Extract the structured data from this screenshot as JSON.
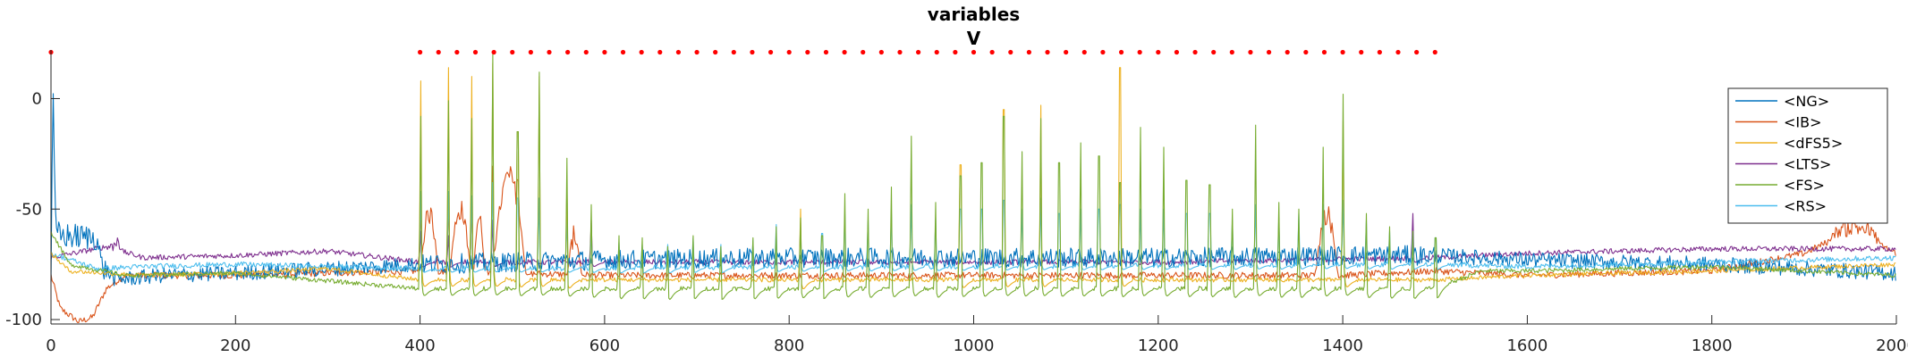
{
  "chart_data": {
    "type": "line",
    "title": [
      "variables",
      "V"
    ],
    "xlabel": "",
    "ylabel": "",
    "xlim": [
      0,
      2000
    ],
    "ylim": [
      -102,
      22
    ],
    "xticks": [
      0,
      200,
      400,
      600,
      800,
      1000,
      1200,
      1400,
      1600,
      1800,
      2000
    ],
    "yticks": [
      -100,
      -50,
      0
    ],
    "grid": false,
    "legend_position": "top-right",
    "markers": {
      "color": "#ff0000",
      "y": 21,
      "x": [
        0,
        400,
        420,
        440,
        460,
        480,
        500,
        520,
        540,
        560,
        580,
        600,
        620,
        640,
        660,
        680,
        700,
        720,
        740,
        760,
        780,
        800,
        820,
        840,
        860,
        880,
        900,
        920,
        940,
        960,
        980,
        1000,
        1020,
        1040,
        1060,
        1080,
        1100,
        1120,
        1140,
        1160,
        1180,
        1200,
        1220,
        1240,
        1260,
        1280,
        1300,
        1320,
        1340,
        1360,
        1380,
        1400,
        1420,
        1440,
        1460,
        1480,
        1500
      ]
    },
    "series": [
      {
        "name": "<NG>",
        "color": "#0072BD",
        "baseline": -73,
        "noise": 3.5,
        "key": [
          [
            0,
            -80
          ],
          [
            2,
            6
          ],
          [
            5,
            -60
          ],
          [
            10,
            -62
          ],
          [
            50,
            -63
          ],
          [
            55,
            -76
          ],
          [
            70,
            -82
          ],
          [
            120,
            -80
          ],
          [
            200,
            -79
          ],
          [
            300,
            -77
          ],
          [
            400,
            -75
          ],
          [
            600,
            -73
          ],
          [
            800,
            -72
          ],
          [
            1000,
            -72
          ],
          [
            1200,
            -72
          ],
          [
            1400,
            -71
          ],
          [
            1500,
            -71
          ],
          [
            1600,
            -73
          ],
          [
            1800,
            -75
          ],
          [
            2000,
            -79
          ]
        ]
      },
      {
        "name": "<IB>",
        "color": "#D95319",
        "baseline": -80,
        "noise": 1.5,
        "key": [
          [
            0,
            -80
          ],
          [
            10,
            -95
          ],
          [
            30,
            -101
          ],
          [
            45,
            -99
          ],
          [
            60,
            -86
          ],
          [
            80,
            -80
          ],
          [
            200,
            -80
          ],
          [
            400,
            -78
          ],
          [
            600,
            -80
          ],
          [
            800,
            -80
          ],
          [
            1000,
            -80
          ],
          [
            1200,
            -80
          ],
          [
            1400,
            -80
          ],
          [
            1500,
            -78
          ],
          [
            1600,
            -80
          ],
          [
            1800,
            -78
          ],
          [
            1900,
            -70
          ],
          [
            1950,
            -60
          ],
          [
            2000,
            -70
          ]
        ]
      },
      {
        "name": "<dFS5>",
        "color": "#EDB120",
        "baseline": -82,
        "noise": 1.0,
        "key": [
          [
            0,
            -70
          ],
          [
            20,
            -78
          ],
          [
            100,
            -80
          ],
          [
            200,
            -79
          ],
          [
            300,
            -77
          ],
          [
            400,
            -82
          ],
          [
            1500,
            -82
          ],
          [
            1600,
            -80
          ],
          [
            1800,
            -78
          ],
          [
            2000,
            -75
          ]
        ]
      },
      {
        "name": "<LTS>",
        "color": "#7E2F8E",
        "baseline": -74,
        "noise": 1.2,
        "key": [
          [
            0,
            -72
          ],
          [
            60,
            -67
          ],
          [
            100,
            -72
          ],
          [
            200,
            -71
          ],
          [
            300,
            -69
          ],
          [
            400,
            -74
          ],
          [
            800,
            -74
          ],
          [
            1200,
            -74
          ],
          [
            1500,
            -72
          ],
          [
            1600,
            -70
          ],
          [
            1800,
            -68
          ],
          [
            2000,
            -68
          ]
        ]
      },
      {
        "name": "<FS>",
        "color": "#77AC30",
        "baseline": -85,
        "noise": 1.0,
        "key": [
          [
            0,
            -60
          ],
          [
            20,
            -75
          ],
          [
            80,
            -80
          ],
          [
            200,
            -79
          ],
          [
            400,
            -86
          ],
          [
            1500,
            -86
          ],
          [
            1550,
            -78
          ],
          [
            1600,
            -78
          ],
          [
            1800,
            -76
          ],
          [
            2000,
            -80
          ]
        ]
      },
      {
        "name": "<RS>",
        "color": "#4DBEEE",
        "baseline": -75,
        "noise": 1.2,
        "key": [
          [
            0,
            -70
          ],
          [
            50,
            -77
          ],
          [
            100,
            -76
          ],
          [
            200,
            -75
          ],
          [
            400,
            -77
          ],
          [
            1500,
            -75
          ],
          [
            1600,
            -76
          ],
          [
            1800,
            -74
          ],
          [
            2000,
            -72
          ]
        ]
      }
    ],
    "spikes": [
      {
        "t": 400,
        "peaks": {
          "FS": -8,
          "dFS5": 8,
          "RS": -42,
          "IB": -48,
          "LTS": -60
        }
      },
      {
        "t": 430,
        "peaks": {
          "FS": -1,
          "dFS5": 14,
          "RS": -42,
          "IB": -45,
          "LTS": -62
        }
      },
      {
        "t": 455,
        "peaks": {
          "FS": -9,
          "dFS5": 10,
          "RS": -44,
          "IB": -45
        }
      },
      {
        "t": 478,
        "peaks": {
          "FS": 20,
          "dFS5": 16,
          "RS": -38,
          "IB": -30,
          "LTS": -55
        }
      },
      {
        "t": 505,
        "peaks": {
          "FS": -15,
          "dFS5": -15,
          "RS": -45,
          "IB": -38
        }
      },
      {
        "t": 528,
        "peaks": {
          "FS": 12,
          "dFS5": 10,
          "RS": -45
        }
      },
      {
        "t": 558,
        "peaks": {
          "FS": -27,
          "dFS5": -38,
          "RS": -55
        }
      },
      {
        "t": 585,
        "peaks": {
          "FS": -48,
          "LTS": -55,
          "RS": -60
        }
      },
      {
        "t": 615,
        "peaks": {
          "FS": -62,
          "RS": -65
        }
      },
      {
        "t": 640,
        "peaks": {
          "FS": -63,
          "RS": -66
        }
      },
      {
        "t": 668,
        "peaks": {
          "FS": -67,
          "RS": -66
        }
      },
      {
        "t": 695,
        "peaks": {
          "FS": -62,
          "RS": -63
        }
      },
      {
        "t": 725,
        "peaks": {
          "FS": -67,
          "RS": -66
        }
      },
      {
        "t": 760,
        "peaks": {
          "FS": -63,
          "RS": -64
        }
      },
      {
        "t": 785,
        "peaks": {
          "FS": -58,
          "RS": -57
        }
      },
      {
        "t": 812,
        "peaks": {
          "FS": -54,
          "dFS5": -50,
          "RS": -56
        }
      },
      {
        "t": 835,
        "peaks": {
          "FS": -62,
          "RS": -61
        }
      },
      {
        "t": 860,
        "peaks": {
          "FS": -43,
          "RS": -52
        }
      },
      {
        "t": 885,
        "peaks": {
          "FS": -50,
          "RS": -55
        }
      },
      {
        "t": 910,
        "peaks": {
          "FS": -40,
          "RS": -52
        }
      },
      {
        "t": 932,
        "peaks": {
          "FS": -17,
          "RS": -48
        }
      },
      {
        "t": 958,
        "peaks": {
          "FS": -47,
          "RS": -54
        }
      },
      {
        "t": 985,
        "peaks": {
          "FS": -35,
          "dFS5": -30,
          "RS": -50
        }
      },
      {
        "t": 1008,
        "peaks": {
          "FS": -29,
          "RS": -50
        }
      },
      {
        "t": 1032,
        "peaks": {
          "FS": -8,
          "dFS5": -5,
          "RS": -46
        }
      },
      {
        "t": 1052,
        "peaks": {
          "FS": -24,
          "RS": -50
        }
      },
      {
        "t": 1072,
        "peaks": {
          "FS": -9,
          "dFS5": -3,
          "RS": -45
        }
      },
      {
        "t": 1092,
        "peaks": {
          "FS": -29,
          "RS": -52
        }
      },
      {
        "t": 1115,
        "peaks": {
          "FS": -20,
          "RS": -50
        }
      },
      {
        "t": 1135,
        "peaks": {
          "FS": -26,
          "RS": -50
        }
      },
      {
        "t": 1158,
        "peaks": {
          "FS": -38,
          "dFS5": 14,
          "RS": -48
        }
      },
      {
        "t": 1180,
        "peaks": {
          "FS": -13,
          "RS": -50
        }
      },
      {
        "t": 1205,
        "peaks": {
          "FS": -22,
          "RS": -50
        }
      },
      {
        "t": 1230,
        "peaks": {
          "FS": -37,
          "RS": -52
        }
      },
      {
        "t": 1255,
        "peaks": {
          "FS": -39,
          "RS": -52
        }
      },
      {
        "t": 1280,
        "peaks": {
          "FS": -50,
          "RS": -55
        }
      },
      {
        "t": 1305,
        "peaks": {
          "FS": -12,
          "RS": -48
        }
      },
      {
        "t": 1330,
        "peaks": {
          "FS": -47,
          "RS": -54
        }
      },
      {
        "t": 1352,
        "peaks": {
          "FS": -50,
          "RS": -52
        }
      },
      {
        "t": 1378,
        "peaks": {
          "FS": -22,
          "RS": -48
        }
      },
      {
        "t": 1400,
        "peaks": {
          "FS": 2,
          "dFS5": -10,
          "RS": -46
        }
      },
      {
        "t": 1425,
        "peaks": {
          "FS": -52,
          "RS": -55
        }
      },
      {
        "t": 1450,
        "peaks": {
          "FS": -58,
          "RS": -60
        }
      },
      {
        "t": 1475,
        "peaks": {
          "FS": -60,
          "RS": -60,
          "LTS": -52
        }
      },
      {
        "t": 1500,
        "peaks": {
          "FS": -63,
          "RS": -63
        }
      }
    ],
    "bursts": [
      {
        "series": "IB",
        "start": 400,
        "end": 420,
        "level": -52
      },
      {
        "series": "IB",
        "start": 432,
        "end": 455,
        "level": -50
      },
      {
        "series": "IB",
        "start": 458,
        "end": 470,
        "level": -54
      },
      {
        "series": "IB",
        "start": 478,
        "end": 515,
        "level": -35
      },
      {
        "series": "IB",
        "start": 560,
        "end": 575,
        "level": -62
      },
      {
        "series": "IB",
        "start": 1370,
        "end": 1395,
        "level": -52
      },
      {
        "series": "IB",
        "start": 1925,
        "end": 1985,
        "level": -58
      },
      {
        "series": "LTS",
        "start": 62,
        "end": 78,
        "level": -65
      }
    ],
    "legend": [
      "<NG>",
      "<IB>",
      "<dFS5>",
      "<LTS>",
      "<FS>",
      "<RS>"
    ]
  }
}
